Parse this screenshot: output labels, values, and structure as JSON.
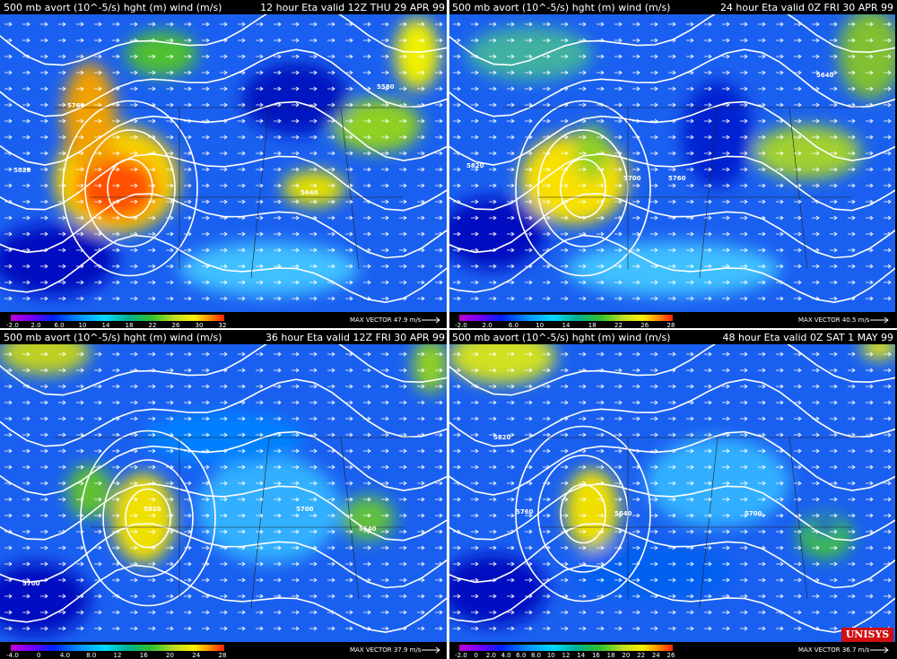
{
  "panels": [
    {
      "title": "500 mb avort (10^-5/s) hght (m) wind (m/s)",
      "valid": "12 hour Eta valid 12Z THU 29 APR 99",
      "colorbar_labels": [
        "-2.0",
        "2.0",
        "6.0",
        "10",
        "14",
        "18",
        "22",
        "26",
        "30",
        "32"
      ],
      "max_vector": "MAX VECTOR 47.9 m/s",
      "contour_labels": [
        "5820",
        "5760",
        "5640",
        "5580"
      ]
    },
    {
      "title": "500 mb avort (10^-5/s) hght (m) wind (m/s)",
      "valid": "24 hour Eta valid 0Z FRI 30 APR 99",
      "colorbar_labels": [
        "-2.0",
        "2.0",
        "6.0",
        "10",
        "14",
        "18",
        "22",
        "26",
        "28"
      ],
      "max_vector": "MAX VECTOR 40.5 m/s",
      "contour_labels": [
        "5820",
        "5700",
        "5760",
        "5640"
      ]
    },
    {
      "title": "500 mb avort (10^-5/s) hght (m) wind (m/s)",
      "valid": "36 hour Eta valid 12Z FRI 30 APR 99",
      "colorbar_labels": [
        "-4.0",
        "0",
        "4.0",
        "8.0",
        "12",
        "16",
        "20",
        "24",
        "28"
      ],
      "max_vector": "MAX VECTOR 37.9 m/s",
      "contour_labels": [
        "5700",
        "5820",
        "5640",
        "5700"
      ]
    },
    {
      "title": "500 mb avort (10^-5/s) hght (m) wind (m/s)",
      "valid": "48 hour Eta valid 0Z SAT  1 MAY 99",
      "colorbar_labels": [
        "-2.0",
        "0",
        "2.0",
        "4.0",
        "6.0",
        "8.0",
        "10",
        "12",
        "14",
        "16",
        "18",
        "20",
        "22",
        "24",
        "26"
      ],
      "max_vector": "MAX VECTOR 36.7 m/s",
      "contour_labels": [
        "5760",
        "5640",
        "5820",
        "5700"
      ]
    }
  ],
  "logo": "UNISYS"
}
